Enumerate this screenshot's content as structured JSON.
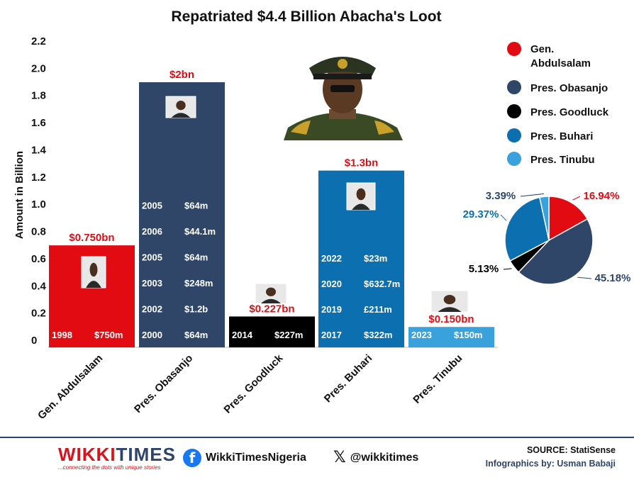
{
  "chart_data": [
    {
      "type": "bar",
      "title": "Repatriated $4.4 Billion Abacha's Loot",
      "ylabel": "Amount in Billion",
      "ylim": [
        0,
        2.2
      ],
      "yticks": [
        "0",
        "0.2",
        "0.4",
        "0.6",
        "0.8",
        "1.0",
        "1.2",
        "1.4",
        "1.6",
        "1.8",
        "2.0",
        "2.2"
      ],
      "categories": [
        "Gen. Abdulsalam",
        "Pres. Obasanjo",
        "Pres. Goodluck",
        "Pres. Buhari",
        "Pres. Tinubu"
      ],
      "values": [
        0.75,
        1.95,
        0.227,
        1.3,
        0.15
      ],
      "value_labels": [
        "$0.750bn",
        "$2bn",
        "$0.227bn",
        "$1.3bn",
        "$0.150bn"
      ],
      "colors": [
        "#e30b12",
        "#2f4668",
        "#000000",
        "#0b6fb0",
        "#39a2dc"
      ],
      "breakdowns": [
        [
          {
            "year": "1998",
            "amount": "$750m"
          }
        ],
        [
          {
            "year": "2000",
            "amount": "$64m"
          },
          {
            "year": "2002",
            "amount": "$1.2b"
          },
          {
            "year": "2003",
            "amount": "$248m"
          },
          {
            "year": "2005",
            "amount": "$64m"
          },
          {
            "year": "2006",
            "amount": "$44.1m"
          },
          {
            "year": "2005",
            "amount": "$64m"
          }
        ],
        [
          {
            "year": "2014",
            "amount": "$227m"
          }
        ],
        [
          {
            "year": "2017",
            "amount": "$322m"
          },
          {
            "year": "2019",
            "amount": "£211m"
          },
          {
            "year": "2020",
            "amount": "$632.7m"
          },
          {
            "year": "2022",
            "amount": "$23m"
          }
        ],
        [
          {
            "year": "2023",
            "amount": "$150m"
          }
        ]
      ]
    },
    {
      "type": "pie",
      "labels": [
        "Gen. Abdulsalam",
        "Pres. Obasanjo",
        "Pres. Goodluck",
        "Pres. Buhari",
        "Pres. Tinubu"
      ],
      "values": [
        16.94,
        45.18,
        5.13,
        29.37,
        3.39
      ],
      "value_labels": [
        "16.94%",
        "45.18%",
        "5.13%",
        "29.37%",
        "3.39%"
      ],
      "colors": [
        "#e30b12",
        "#2f4668",
        "#000000",
        "#0b6fb0",
        "#39a2dc"
      ],
      "label_colors": [
        "#e30b12",
        "#2f4668",
        "#000000",
        "#0b6fb0",
        "#2f4668"
      ],
      "legend": "top-right"
    }
  ],
  "footer": {
    "brand_part1": "WIKKI",
    "brand_part2": "TIMES",
    "brand_tagline": "...connecting the dots with unique stories",
    "facebook": "WikkiTimesNigeria",
    "twitter": "@wikkitimes",
    "source": "SOURCE: StatiSense",
    "credit": "Infographics by: Usman Babaji"
  },
  "icons": [
    "portrait-photo",
    "facebook-icon",
    "x-icon"
  ]
}
